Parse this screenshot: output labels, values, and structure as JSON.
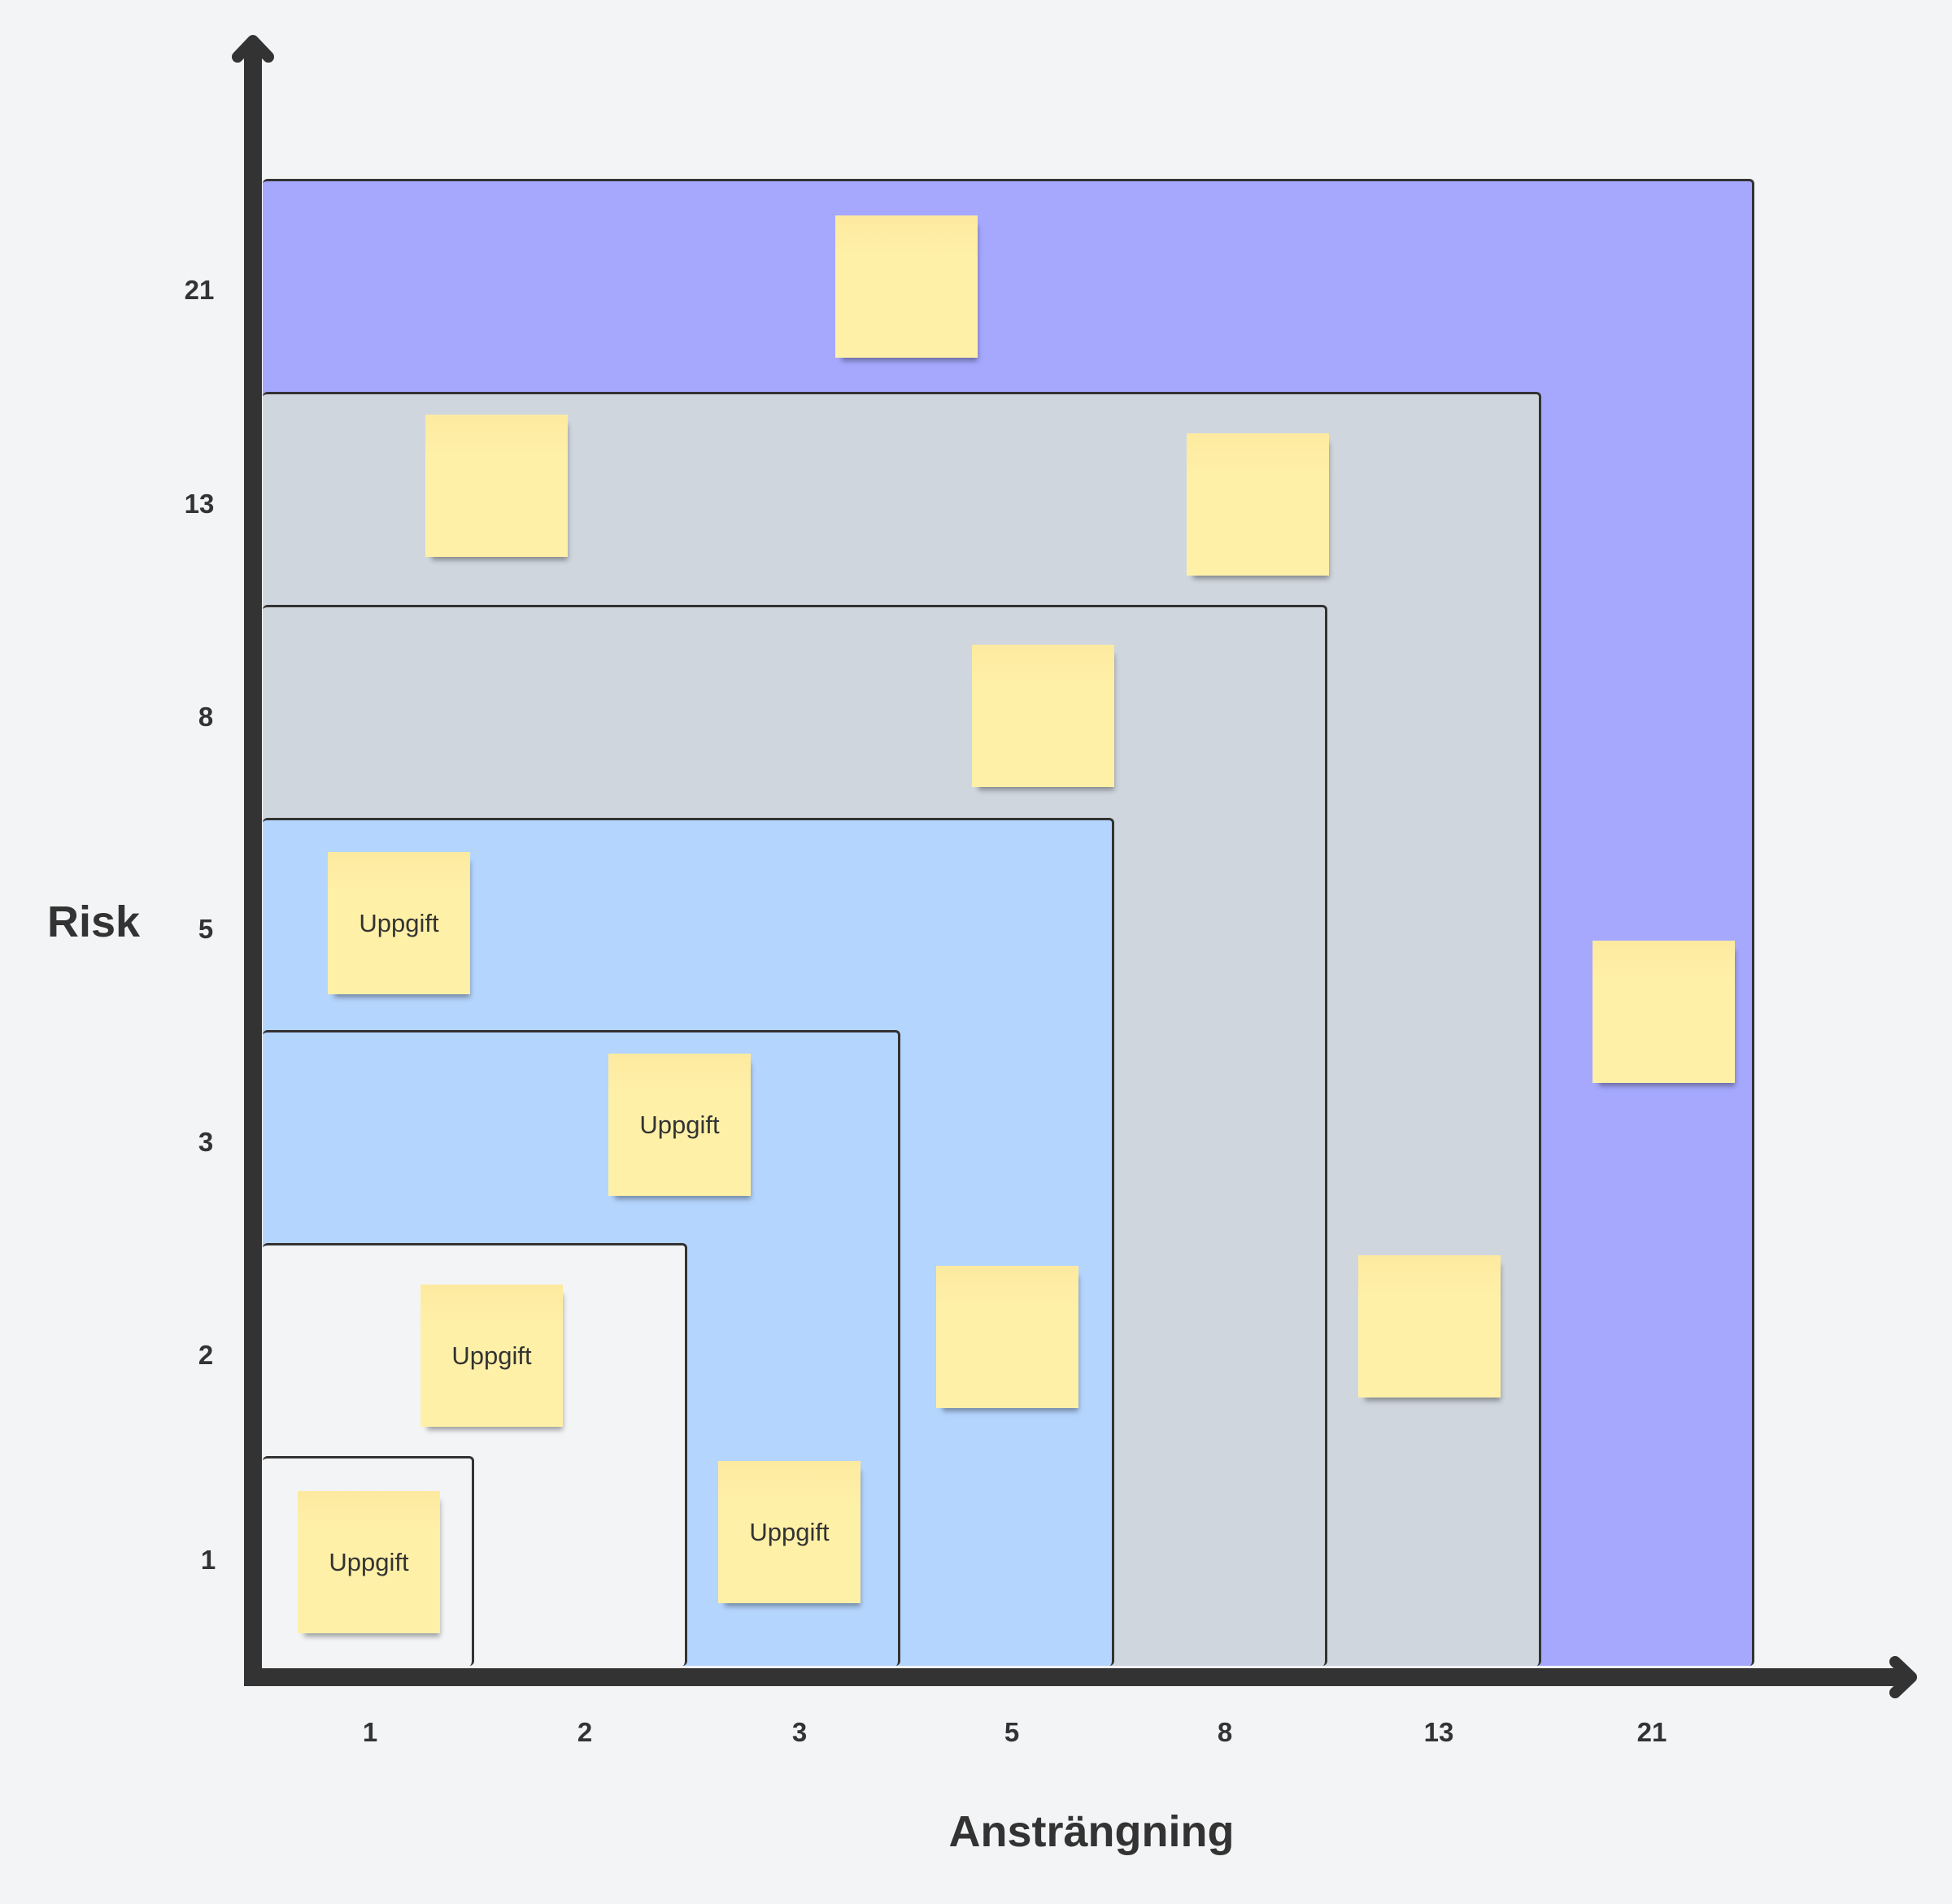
{
  "axes": {
    "x_title": "Ansträngning",
    "y_title": "Risk",
    "x_ticks": [
      "1",
      "2",
      "3",
      "5",
      "8",
      "13",
      "21"
    ],
    "y_ticks": [
      "21",
      "13",
      "8",
      "5",
      "3",
      "2",
      "1"
    ]
  },
  "colors": {
    "zone_21": "#a5a8fd",
    "zone_13": "#cfd6de",
    "zone_8": "#cfd6de",
    "zone_5": "#b4d5fe",
    "zone_3": "#b4d5fe",
    "zone_2": "#f3f4f6",
    "zone_1": "#f3f4f6",
    "sticky": "#fff0a8",
    "axis": "#333333"
  },
  "stickies": [
    {
      "text": ""
    },
    {
      "text": ""
    },
    {
      "text": ""
    },
    {
      "text": ""
    },
    {
      "text": "Uppgift"
    },
    {
      "text": "Uppgift"
    },
    {
      "text": ""
    },
    {
      "text": "Uppgift"
    },
    {
      "text": ""
    },
    {
      "text": ""
    },
    {
      "text": "Uppgift"
    },
    {
      "text": "Uppgift"
    }
  ]
}
